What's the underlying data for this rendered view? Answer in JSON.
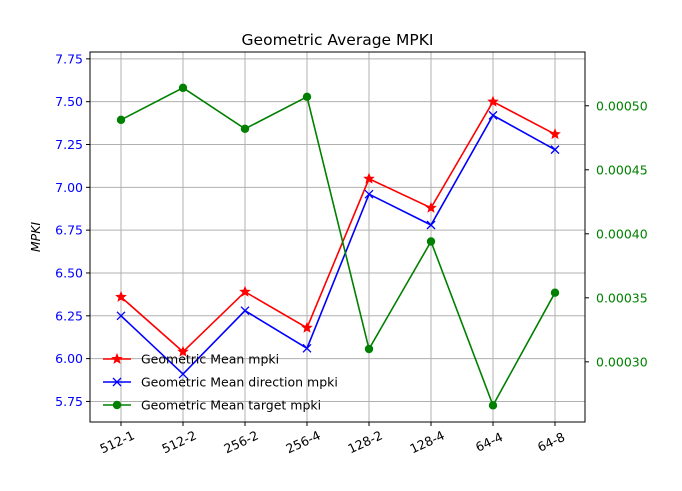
{
  "chart_data": {
    "type": "line",
    "title": "Geometric Average MPKI",
    "xlabel": "",
    "ylabel": "MPKI",
    "categories": [
      "512-1",
      "512-2",
      "256-2",
      "256-4",
      "128-2",
      "128-4",
      "64-4",
      "64-8"
    ],
    "ylim": [
      5.63,
      7.79
    ],
    "yticks": [
      "5.75",
      "6.00",
      "6.25",
      "6.50",
      "6.75",
      "7.00",
      "7.25",
      "7.50",
      "7.75"
    ],
    "y2lim": [
      0.000253,
      0.000542
    ],
    "y2ticks": [
      "0.00030",
      "0.00035",
      "0.00040",
      "0.00045",
      "0.00050"
    ],
    "grid": true,
    "legend_position": "lower-left",
    "left_axis_color": "#0000ff",
    "right_axis_color": "#008000",
    "series": [
      {
        "name": "Geometric Mean mpki",
        "axis": "left",
        "color": "#ff0000",
        "marker": "star",
        "values": [
          6.36,
          6.04,
          6.39,
          6.18,
          7.05,
          6.88,
          7.5,
          7.31
        ]
      },
      {
        "name": "Geometric Mean direction mpki",
        "axis": "left",
        "color": "#0000ff",
        "marker": "x",
        "values": [
          6.25,
          5.91,
          6.28,
          6.06,
          6.96,
          6.78,
          7.42,
          7.22
        ]
      },
      {
        "name": "Geometric Mean target mpki",
        "axis": "right",
        "color": "#008000",
        "marker": "circle",
        "values": [
          0.000489,
          0.000514,
          0.000482,
          0.000507,
          0.00031,
          0.000394,
          0.000266,
          0.000354
        ]
      }
    ]
  }
}
